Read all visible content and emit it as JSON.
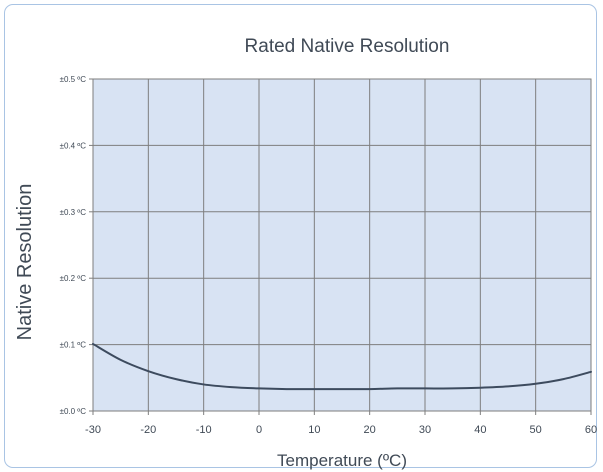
{
  "chart_data": {
    "type": "line",
    "title": "Rated Native Resolution",
    "xlabel": "Temperature (ºC)",
    "ylabel": "Native Resolution",
    "x_ticks": [
      -30,
      -20,
      -10,
      0,
      10,
      20,
      30,
      40,
      50,
      60
    ],
    "y_ticks": [
      {
        "value": 0.0,
        "label": "±0.0 ºC"
      },
      {
        "value": 0.1,
        "label": "±0.1 ºC"
      },
      {
        "value": 0.2,
        "label": "±0.2 ºC"
      },
      {
        "value": 0.3,
        "label": "±0.3 ºC"
      },
      {
        "value": 0.4,
        "label": "±0.4 ºC"
      },
      {
        "value": 0.5,
        "label": "±0.5 ºC"
      }
    ],
    "xlim": [
      -30,
      60
    ],
    "ylim": [
      0,
      0.5
    ],
    "grid": true,
    "series": [
      {
        "x": [
          -30,
          -25,
          -20,
          -15,
          -10,
          -5,
          0,
          5,
          10,
          15,
          20,
          25,
          30,
          35,
          40,
          45,
          50,
          55,
          60
        ],
        "y": [
          0.101,
          0.077,
          0.06,
          0.048,
          0.04,
          0.036,
          0.034,
          0.033,
          0.033,
          0.033,
          0.033,
          0.034,
          0.034,
          0.034,
          0.035,
          0.037,
          0.041,
          0.048,
          0.059
        ]
      }
    ],
    "colors": {
      "plot_background": "#d8e3f3",
      "grid": "#7e7e7e",
      "line": "#3d4b5e",
      "frame_border": "#a9c4e4"
    }
  }
}
